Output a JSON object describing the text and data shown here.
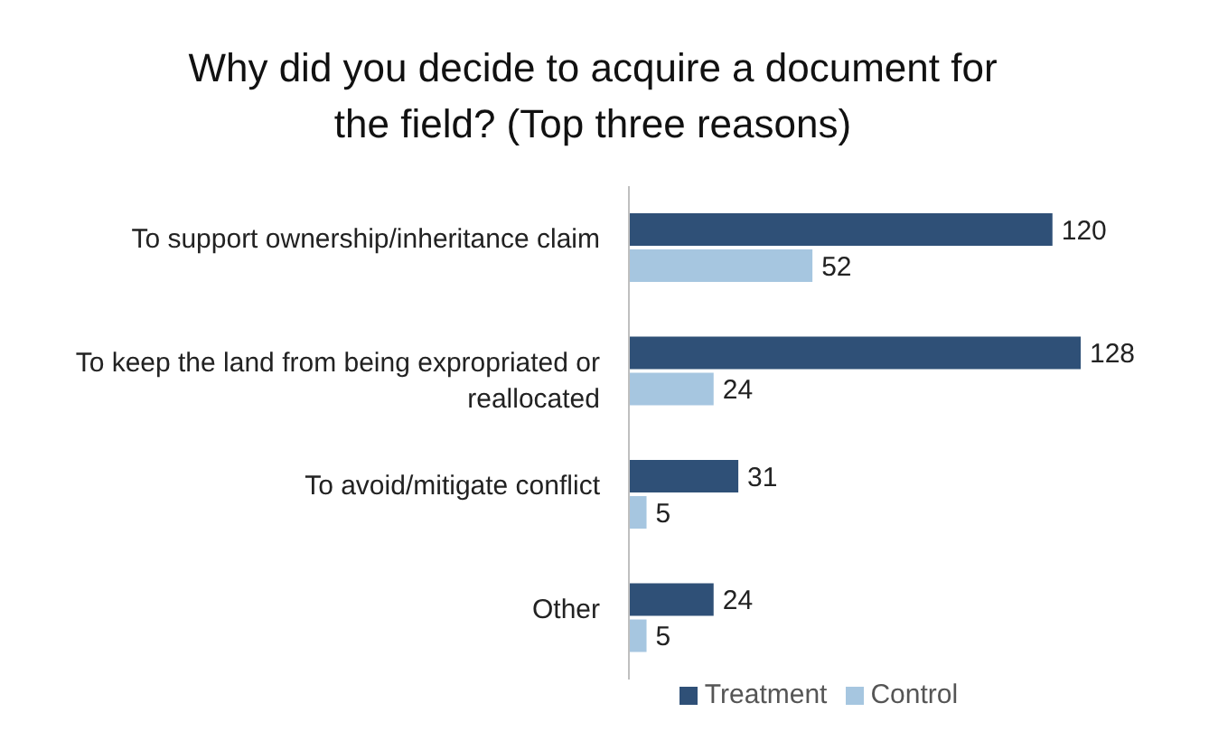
{
  "chart_data": {
    "type": "bar",
    "orientation": "horizontal",
    "title": "Why did you decide to acquire a document for the field? (Top three reasons)",
    "categories": [
      "To support ownership/inheritance claim",
      "To keep the land from being expropriated or reallocated",
      "To avoid/mitigate conflict",
      "Other"
    ],
    "series": [
      {
        "name": "Treatment",
        "color": "#2f5077",
        "values": [
          120,
          128,
          31,
          24
        ]
      },
      {
        "name": "Control",
        "color": "#a6c6e0",
        "values": [
          52,
          24,
          5,
          5
        ]
      }
    ],
    "data_labels": true,
    "legend": "bottom"
  }
}
